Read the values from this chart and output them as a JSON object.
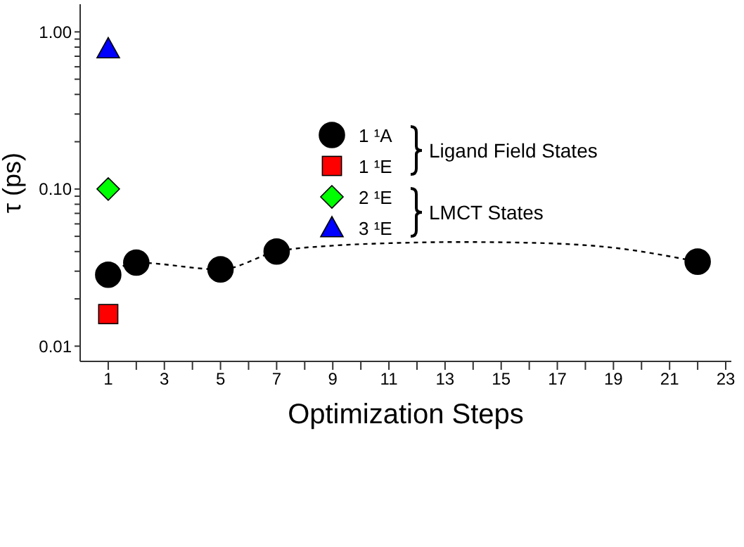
{
  "chart_data": {
    "type": "scatter",
    "xlabel": "Optimization Steps",
    "ylabel": "τ (ps)",
    "log": "y",
    "xlim": [
      0,
      23.2
    ],
    "ylim": [
      0.008,
      1.5
    ],
    "xticks": [
      1,
      {
        "value": 2,
        "label": null
      },
      3,
      {
        "value": 4,
        "label": null
      },
      5,
      {
        "value": 6,
        "label": null
      },
      7,
      {
        "value": 8,
        "label": null
      },
      9,
      {
        "value": 10,
        "label": null
      },
      11,
      {
        "value": 12,
        "label": null
      },
      13,
      {
        "value": 14,
        "label": null
      },
      15,
      {
        "value": 16,
        "label": null
      },
      17,
      {
        "value": 18,
        "label": null
      },
      19,
      {
        "value": 20,
        "label": null
      },
      21,
      {
        "value": 22,
        "label": null
      },
      23
    ],
    "yticks": [
      {
        "value": 0.01,
        "label": "0.01"
      },
      {
        "value": 0.02,
        "label": null
      },
      {
        "value": 0.03,
        "label": null
      },
      {
        "value": 0.04,
        "label": null
      },
      {
        "value": 0.05,
        "label": null
      },
      {
        "value": 0.06,
        "label": null
      },
      {
        "value": 0.07,
        "label": null
      },
      {
        "value": 0.08,
        "label": null
      },
      {
        "value": 0.09,
        "label": null
      },
      {
        "value": 0.1,
        "label": "0.10"
      },
      {
        "value": 0.2,
        "label": null
      },
      {
        "value": 0.3,
        "label": null
      },
      {
        "value": 0.4,
        "label": null
      },
      {
        "value": 0.5,
        "label": null
      },
      {
        "value": 0.6,
        "label": null
      },
      {
        "value": 0.7,
        "label": null
      },
      {
        "value": 0.8,
        "label": null
      },
      {
        "value": 0.9,
        "label": null
      },
      {
        "value": 1,
        "label": "1.00"
      }
    ],
    "legend": "top",
    "series": [
      {
        "name": "1 ¹A",
        "color": "#000000",
        "marker": "circle",
        "x": [
          1,
          2,
          5,
          7,
          22
        ],
        "values": [
          0.0285,
          0.034,
          0.0308,
          0.04,
          0.0345
        ]
      },
      {
        "name": "1 ¹E",
        "color": "#ff0000",
        "marker": "square",
        "x": [
          1
        ],
        "values": [
          0.016
        ]
      },
      {
        "name": "2 ¹E",
        "color": "#00ff00",
        "marker": "diamond",
        "x": [
          1
        ],
        "values": [
          0.1
        ]
      },
      {
        "name": "3 ¹E",
        "color": "#0000ff",
        "marker": "triangle",
        "x": [
          1
        ],
        "values": [
          0.78
        ]
      },
      {
        "type": "line",
        "color": "#000000",
        "line_style": "dashed",
        "marker": "none",
        "x": [
          1,
          2,
          5,
          7,
          9,
          11,
          13.5,
          16,
          19,
          22
        ],
        "values": [
          0.0285,
          0.034,
          0.0308,
          0.04,
          0.0436,
          0.0452,
          0.046,
          0.0455,
          0.0423,
          0.0345
        ]
      }
    ],
    "annotations": [
      "Ligand Field States",
      "LMCT States"
    ]
  }
}
